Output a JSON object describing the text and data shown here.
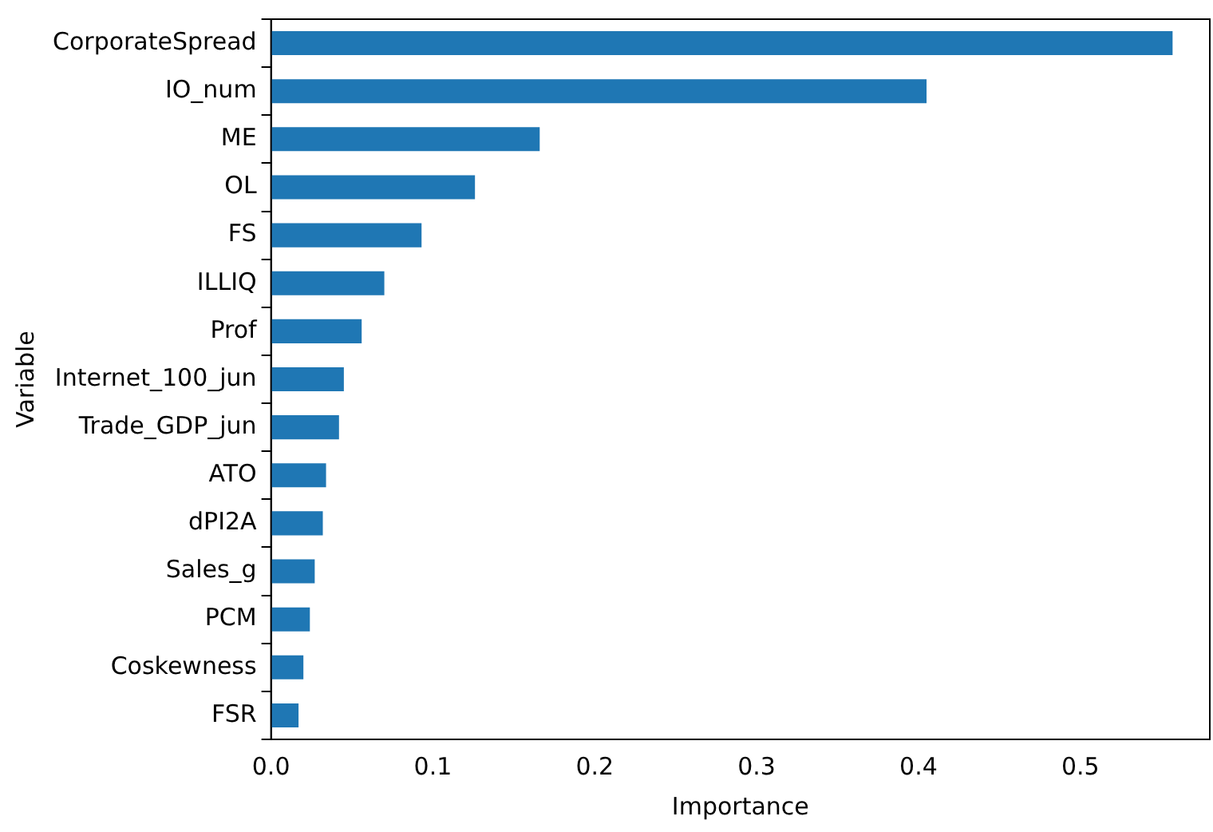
{
  "chart_data": {
    "type": "bar",
    "orientation": "horizontal",
    "xlabel": "Importance",
    "ylabel": "Variable",
    "categories": [
      "CorporateSpread",
      "IO_num",
      "ME",
      "OL",
      "FS",
      "ILLIQ",
      "Prof",
      "Internet_100_jun",
      "Trade_GDP_jun",
      "ATO",
      "dPI2A",
      "Sales_g",
      "PCM",
      "Coskewness",
      "FSR"
    ],
    "values": [
      0.557,
      0.405,
      0.166,
      0.126,
      0.093,
      0.07,
      0.056,
      0.045,
      0.042,
      0.034,
      0.032,
      0.027,
      0.024,
      0.02,
      0.017
    ],
    "color": "#1f77b4",
    "xlim": [
      0,
      0.58
    ],
    "xticks": [
      {
        "value": 0,
        "label": "0.0"
      },
      {
        "value": 0.1,
        "label": "0.1"
      },
      {
        "value": 0.2,
        "label": "0.2"
      },
      {
        "value": 0.3,
        "label": "0.3"
      },
      {
        "value": 0.4,
        "label": "0.4"
      },
      {
        "value": 0.5,
        "label": "0.5"
      }
    ],
    "grid": false,
    "legend": false
  }
}
